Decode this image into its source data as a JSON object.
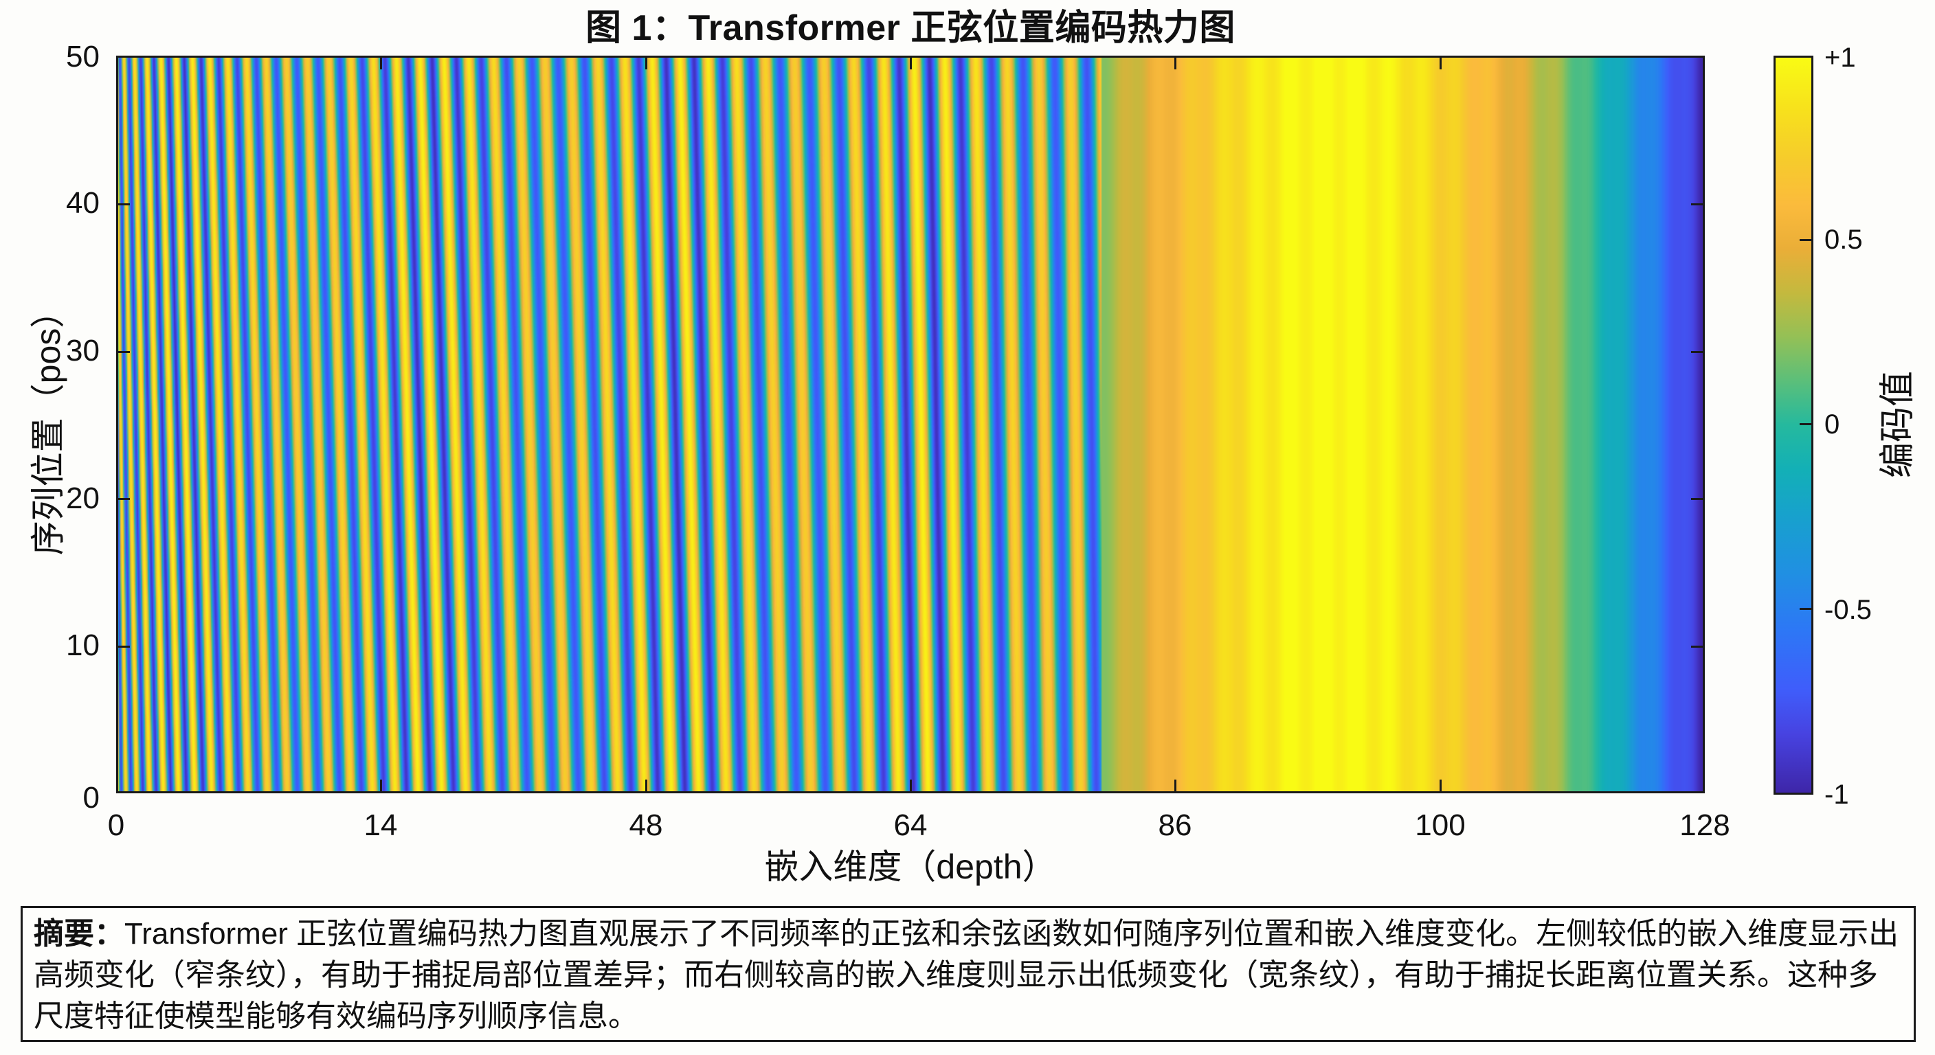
{
  "figure": {
    "title": "图 1：Transformer 正弦位置编码热力图"
  },
  "caption": {
    "lead": "摘要：",
    "body": "Transformer 正弦位置编码热力图直观展示了不同频率的正弦和余弦函数如何随序列位置和嵌入维度变化。左侧较低的嵌入维度显示出高频变化（窄条纹），有助于捕捉局部位置差异；而右侧较高的嵌入维度则显示出低频变化（宽条纹），有助于捕捉长距离位置关系。这种多尺度特征使模型能够有效编码序列顺序信息。"
  },
  "chart_data": {
    "type": "heatmap",
    "title": "图 1：Transformer 正弦位置编码热力图",
    "xlabel": "嵌入维度（depth）",
    "ylabel": "序列位置（pos）",
    "colorbar_label": "编码值",
    "x_ticks": [
      "0",
      "14",
      "48",
      "64",
      "86",
      "100",
      "128"
    ],
    "y_ticks": [
      "0",
      "10",
      "20",
      "30",
      "40",
      "50"
    ],
    "colorbar_ticks": [
      "-1",
      "-0.5",
      "0",
      "0.5",
      "+1"
    ],
    "xlim": [
      0,
      128
    ],
    "ylim": [
      0,
      50
    ],
    "clim": [
      -1,
      1
    ],
    "colormap": "parula",
    "colormap_stops": [
      "#3e26a8",
      "#4743e1",
      "#3f5dfb",
      "#2d77f6",
      "#2090e2",
      "#17a2cc",
      "#13b0b6",
      "#25b99e",
      "#5bbf7a",
      "#94c056",
      "#c4b93e",
      "#eaae38",
      "#fbbb3c",
      "#f6cb2c",
      "#f7e11c",
      "#f9fb14"
    ],
    "description": "Sinusoidal positional encoding: narrow alternating yellow/blue stripes (high frequency) at low depth on the left, widening to broad bands at high depth; a broad yellow band (~+1) around depth 86-100 and dark blue (~-1) at depth 128.",
    "pattern": {
      "columns": 128,
      "rows": 50,
      "high_freq_stripes_left": 60,
      "broad_yellow_center_depth": 93,
      "rightmost_value": -1
    }
  },
  "axes": {
    "y_tick_labels": [
      "50",
      "40",
      "30",
      "20",
      "10",
      "0"
    ],
    "x_tick_labels": [
      "0",
      "14",
      "48",
      "64",
      "86",
      "100",
      "128"
    ],
    "cb_tick_labels": [
      "+1",
      "0.5",
      "0",
      "-0.5",
      "-1"
    ]
  }
}
